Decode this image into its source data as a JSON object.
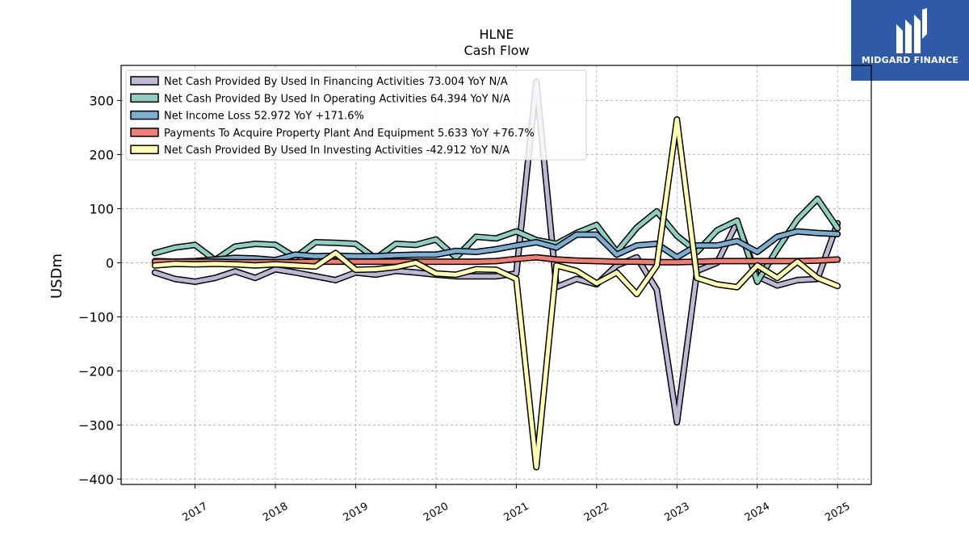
{
  "logo": {
    "text": "MIDGARD FINANCE"
  },
  "chart_data": {
    "type": "line",
    "title": "HLNE",
    "subtitle": "Cash Flow",
    "xlabel": "",
    "ylabel": "USDm",
    "ylim": [
      -410,
      365
    ],
    "xlim": [
      2016.08,
      2025.42
    ],
    "yticks": [
      300,
      200,
      100,
      0,
      -100,
      -200,
      -300,
      -400
    ],
    "ytick_labels": [
      "300",
      "200",
      "100",
      "0",
      "−100",
      "−200",
      "−300",
      "−400"
    ],
    "xticks": [
      2017,
      2018,
      2019,
      2020,
      2021,
      2022,
      2023,
      2024,
      2025
    ],
    "xtick_labels": [
      "2017",
      "2018",
      "2019",
      "2020",
      "2021",
      "2022",
      "2023",
      "2024",
      "2025"
    ],
    "grid": true,
    "legend_position": "top-left",
    "x": [
      2016.5,
      2016.75,
      2017.0,
      2017.25,
      2017.5,
      2017.75,
      2018.0,
      2018.25,
      2018.5,
      2018.75,
      2019.0,
      2019.25,
      2019.5,
      2019.75,
      2020.0,
      2020.25,
      2020.5,
      2020.75,
      2021.0,
      2021.25,
      2021.5,
      2021.75,
      2022.0,
      2022.25,
      2022.5,
      2022.75,
      2023.0,
      2023.25,
      2023.5,
      2023.75,
      2024.0,
      2024.25,
      2024.5,
      2024.75,
      2025.0
    ],
    "series": [
      {
        "name": "Net Cash Provided By Used In Financing Activities",
        "legend_label": "Net Cash Provided By Used In Financing Activities  73.004 YoY N/A",
        "color": "#bcb8d6",
        "values": [
          -18,
          -30,
          -35,
          -28,
          -16,
          -28,
          -12,
          -18,
          -25,
          -32,
          -18,
          -22,
          -15,
          -18,
          -22,
          -25,
          -25,
          -25,
          -20,
          335,
          -45,
          -30,
          -40,
          -5,
          10,
          -50,
          -295,
          -15,
          0,
          75,
          -25,
          -42,
          -32,
          -30,
          73
        ]
      },
      {
        "name": "Net Cash Provided By Used In Operating Activities",
        "legend_label": "Net Cash Provided By Used In Operating Activities  64.394 YoY N/A",
        "color": "#8dcfc1",
        "values": [
          18,
          28,
          33,
          5,
          30,
          35,
          33,
          10,
          38,
          37,
          35,
          8,
          35,
          33,
          43,
          10,
          48,
          45,
          58,
          42,
          35,
          55,
          70,
          20,
          65,
          95,
          50,
          20,
          60,
          78,
          -35,
          25,
          80,
          118,
          64
        ]
      },
      {
        "name": "Net Income Loss",
        "legend_label": "Net Income Loss  52.972 YoY +171.6%",
        "color": "#7aaed2",
        "values": [
          3,
          2,
          3,
          6,
          9,
          8,
          5,
          15,
          12,
          13,
          12,
          12,
          14,
          15,
          15,
          22,
          20,
          25,
          32,
          38,
          28,
          52,
          52,
          15,
          32,
          35,
          10,
          32,
          32,
          40,
          20,
          48,
          58,
          55,
          53
        ]
      },
      {
        "name": "Payments To Acquire Property Plant And Equipment",
        "legend_label": "Payments To Acquire Property Plant And Equipment  5.633 YoY +76.7%",
        "color": "#f27d72",
        "values": [
          2,
          2,
          2,
          2,
          1,
          1,
          1,
          1,
          2,
          2,
          2,
          2,
          2,
          2,
          2,
          2,
          2,
          3,
          7,
          10,
          6,
          4,
          3,
          2,
          2,
          1,
          1,
          2,
          3,
          3,
          3,
          3,
          3,
          4,
          6
        ]
      },
      {
        "name": "Net Cash Provided By Used In Investing Activities",
        "legend_label": "Net Cash Provided By Used In Investing Activities  -42.912 YoY N/A",
        "color": "#ffffb1",
        "values": [
          -5,
          -2,
          -3,
          -2,
          -3,
          -5,
          -3,
          -5,
          -7,
          18,
          -13,
          -12,
          -8,
          0,
          -20,
          -22,
          -12,
          -13,
          -30,
          -378,
          -5,
          -15,
          -38,
          -18,
          -58,
          -5,
          265,
          -28,
          -40,
          -45,
          -5,
          -28,
          2,
          -28,
          -43
        ]
      }
    ]
  }
}
